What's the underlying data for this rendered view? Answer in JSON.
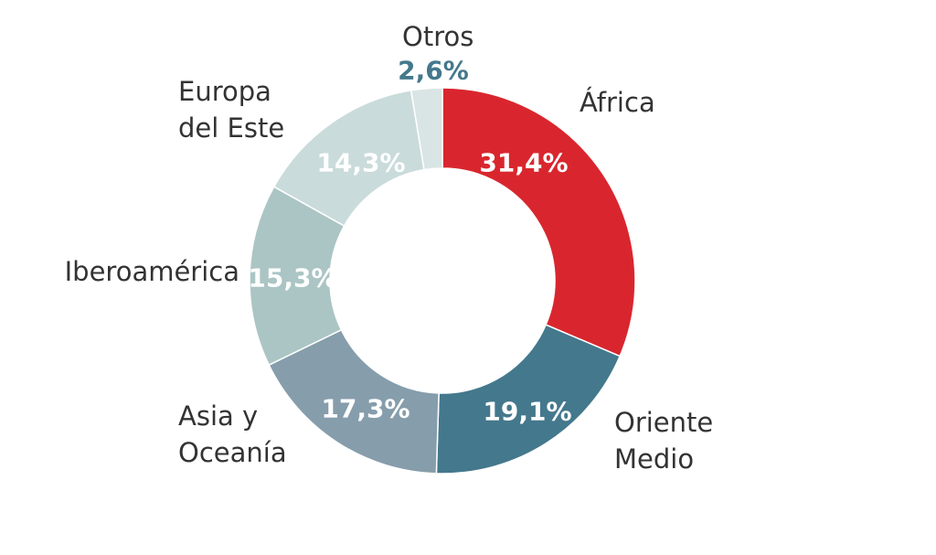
{
  "chart_data": {
    "type": "donut",
    "categories": [
      "África",
      "Oriente\nMedio",
      "Asia y\nOceanía",
      "Iberoamérica",
      "Europa\ndel Este",
      "Otros"
    ],
    "values": [
      31.4,
      19.1,
      17.3,
      15.3,
      14.3,
      2.6
    ],
    "value_labels": [
      "31,4%",
      "19,1%",
      "17,3%",
      "15,3%",
      "14,3%",
      "2,6%"
    ],
    "colors": [
      "#d9262e",
      "#44788c",
      "#869dab",
      "#abc5c4",
      "#c9dbda",
      "#d9e5e4"
    ],
    "value_label_colors": [
      "#ffffff",
      "#ffffff",
      "#ffffff",
      "#ffffff",
      "#ffffff",
      "#44788c"
    ]
  }
}
